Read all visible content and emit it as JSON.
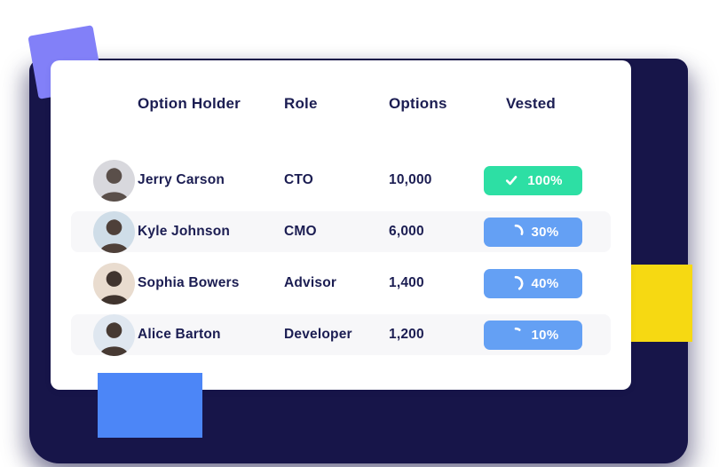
{
  "page": {
    "background": "#ffffff"
  },
  "decor": {
    "navy_panel_color": "#171549",
    "purple_square_color": "#8280f8",
    "yellow_rect_color": "#f6d912",
    "blue_rect_color": "#4c86f7"
  },
  "colors": {
    "text": "#1b1d52",
    "stripe": "#f7f7f9",
    "badge_green": "#2ddfa4",
    "badge_blue": "#64a0f4",
    "badge_text": "#ffffff"
  },
  "table": {
    "headers": [
      "Option Holder",
      "Role",
      "Options",
      "Vested"
    ],
    "rows": [
      {
        "name": "Jerry Carson",
        "role": "CTO",
        "options": "10,000",
        "vested": "100%",
        "vested_value": 100,
        "badge_icon": "check-icon",
        "badge_color": "#2ddfa4",
        "striped": false,
        "avatar_bg": "#d8d8dd",
        "avatar_fg": "#5a4f4a"
      },
      {
        "name": "Kyle Johnson",
        "role": "CMO",
        "options": "6,000",
        "vested": "30%",
        "vested_value": 30,
        "badge_icon": "arc-icon",
        "badge_color": "#64a0f4",
        "striped": true,
        "avatar_bg": "#cfdde8",
        "avatar_fg": "#4e4039"
      },
      {
        "name": "Sophia Bowers",
        "role": "Advisor",
        "options": "1,400",
        "vested": "40%",
        "vested_value": 40,
        "badge_icon": "arc-icon",
        "badge_color": "#64a0f4",
        "striped": false,
        "avatar_bg": "#e9dccf",
        "avatar_fg": "#40342e"
      },
      {
        "name": "Alice Barton",
        "role": "Developer",
        "options": "1,200",
        "vested": "10%",
        "vested_value": 10,
        "badge_icon": "arc-icon",
        "badge_color": "#64a0f4",
        "striped": true,
        "avatar_bg": "#dfe7f0",
        "avatar_fg": "#473a33"
      }
    ]
  }
}
